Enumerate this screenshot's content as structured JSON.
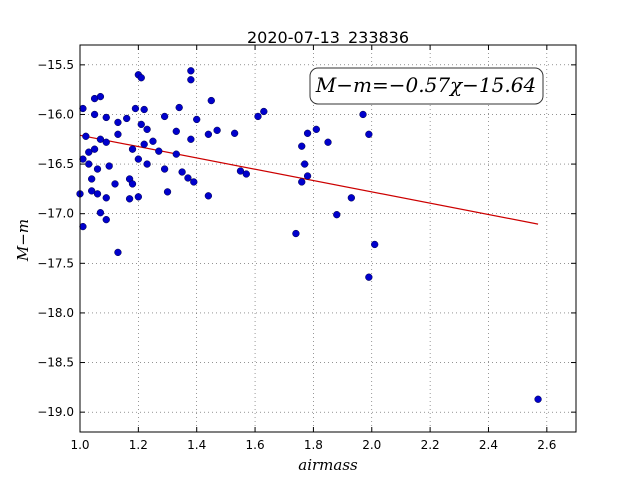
{
  "chart_data": {
    "type": "scatter",
    "title": "2020-07-13_233836",
    "xlabel": "airmass",
    "ylabel": "M−m",
    "xlim": [
      1.0,
      2.7
    ],
    "ylim": [
      -19.2,
      -15.3
    ],
    "x_ticks": [
      1.0,
      1.2,
      1.4,
      1.6,
      1.8,
      2.0,
      2.2,
      2.4,
      2.6
    ],
    "y_ticks": [
      -15.5,
      -16.0,
      -16.5,
      -17.0,
      -17.5,
      -18.0,
      -18.5,
      -19.0
    ],
    "x_tick_labels": [
      "1.0",
      "1.2",
      "1.4",
      "1.6",
      "1.8",
      "2.0",
      "2.2",
      "2.4",
      "2.6"
    ],
    "y_tick_labels": [
      "−15.5",
      "−16.0",
      "−16.5",
      "−17.0",
      "−17.5",
      "−18.0",
      "−18.5",
      "−19.0"
    ],
    "grid": true,
    "annotation": "M−m=−0.57χ−15.64",
    "point_color": "#0000cc",
    "fit_color": "#cc0000",
    "fit": {
      "slope": -0.57,
      "intercept": -15.64,
      "x_range": [
        1.0,
        2.57
      ]
    },
    "points": [
      [
        1.01,
        -15.94
      ],
      [
        1.05,
        -15.84
      ],
      [
        1.07,
        -15.82
      ],
      [
        1.05,
        -16.0
      ],
      [
        1.09,
        -16.03
      ],
      [
        1.13,
        -16.08
      ],
      [
        1.02,
        -16.22
      ],
      [
        1.05,
        -16.35
      ],
      [
        1.07,
        -16.25
      ],
      [
        1.09,
        -16.28
      ],
      [
        1.13,
        -16.2
      ],
      [
        1.01,
        -16.45
      ],
      [
        1.03,
        -16.38
      ],
      [
        1.03,
        -16.5
      ],
      [
        1.04,
        -16.65
      ],
      [
        1.06,
        -16.55
      ],
      [
        1.1,
        -16.52
      ],
      [
        1.0,
        -16.8
      ],
      [
        1.04,
        -16.77
      ],
      [
        1.06,
        -16.8
      ],
      [
        1.09,
        -16.84
      ],
      [
        1.12,
        -16.7
      ],
      [
        1.07,
        -16.99
      ],
      [
        1.09,
        -17.06
      ],
      [
        1.01,
        -17.13
      ],
      [
        1.13,
        -17.39
      ],
      [
        1.16,
        -16.04
      ],
      [
        1.19,
        -15.94
      ],
      [
        1.22,
        -15.95
      ],
      [
        1.2,
        -15.6
      ],
      [
        1.21,
        -15.63
      ],
      [
        1.21,
        -16.1
      ],
      [
        1.23,
        -16.15
      ],
      [
        1.22,
        -16.3
      ],
      [
        1.25,
        -16.27
      ],
      [
        1.18,
        -16.35
      ],
      [
        1.2,
        -16.45
      ],
      [
        1.23,
        -16.5
      ],
      [
        1.27,
        -16.37
      ],
      [
        1.17,
        -16.65
      ],
      [
        1.18,
        -16.7
      ],
      [
        1.17,
        -16.85
      ],
      [
        1.2,
        -16.83
      ],
      [
        1.29,
        -16.02
      ],
      [
        1.34,
        -15.93
      ],
      [
        1.33,
        -16.17
      ],
      [
        1.29,
        -16.55
      ],
      [
        1.33,
        -16.4
      ],
      [
        1.35,
        -16.58
      ],
      [
        1.37,
        -16.64
      ],
      [
        1.39,
        -16.68
      ],
      [
        1.3,
        -16.78
      ],
      [
        1.38,
        -15.56
      ],
      [
        1.38,
        -15.65
      ],
      [
        1.4,
        -16.05
      ],
      [
        1.38,
        -16.25
      ],
      [
        1.45,
        -15.86
      ],
      [
        1.44,
        -16.2
      ],
      [
        1.47,
        -16.16
      ],
      [
        1.53,
        -16.19
      ],
      [
        1.44,
        -16.82
      ],
      [
        1.55,
        -16.57
      ],
      [
        1.57,
        -16.6
      ],
      [
        1.61,
        -16.02
      ],
      [
        1.63,
        -15.97
      ],
      [
        1.76,
        -16.32
      ],
      [
        1.77,
        -16.5
      ],
      [
        1.78,
        -16.19
      ],
      [
        1.81,
        -16.15
      ],
      [
        1.78,
        -16.62
      ],
      [
        1.76,
        -16.68
      ],
      [
        1.85,
        -16.28
      ],
      [
        1.74,
        -17.2
      ],
      [
        1.88,
        -17.01
      ],
      [
        1.93,
        -16.84
      ],
      [
        1.97,
        -16.0
      ],
      [
        1.99,
        -16.2
      ],
      [
        2.01,
        -17.31
      ],
      [
        1.99,
        -17.64
      ],
      [
        2.57,
        -18.87
      ]
    ]
  }
}
